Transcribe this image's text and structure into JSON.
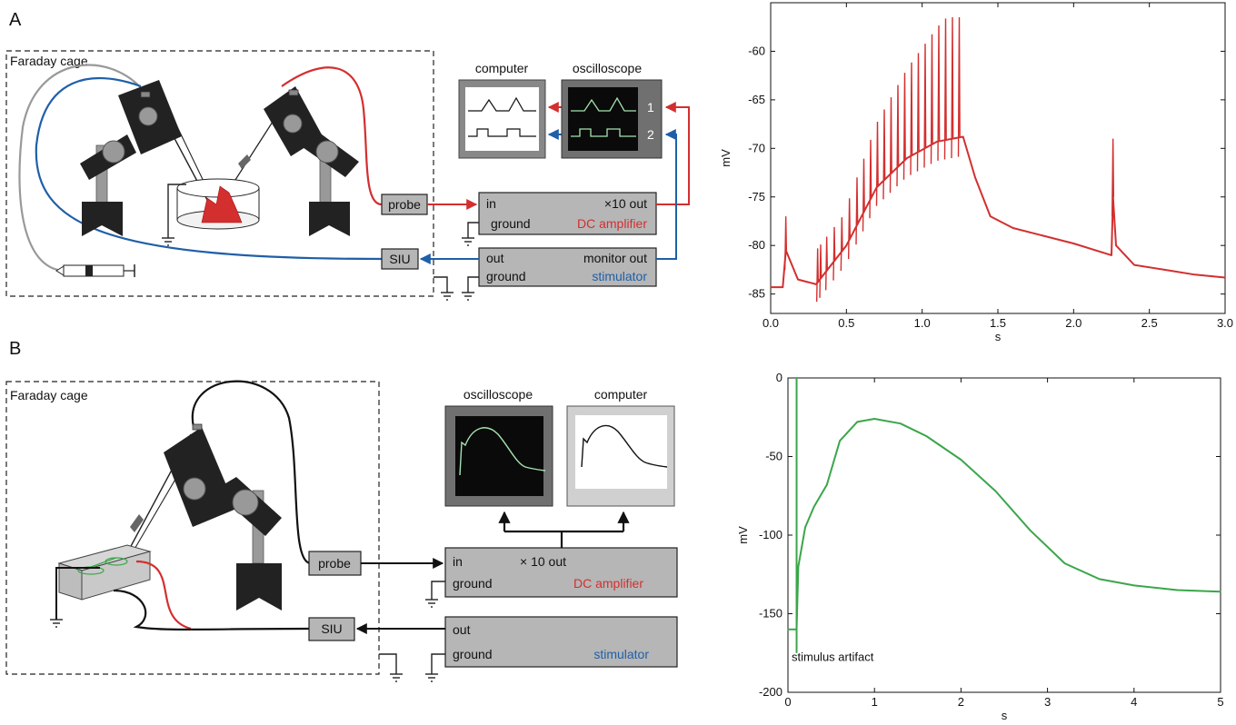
{
  "panels": {
    "a": {
      "label": "A",
      "faraday_label": "Faraday cage",
      "computer_label": "computer",
      "oscilloscope_label": "oscilloscope",
      "channel_1": "1",
      "channel_2": "2",
      "probe_label": "probe",
      "siu_label": "SIU",
      "amplifier": {
        "in": "in",
        "out": "×10 out",
        "ground": "ground",
        "name": "DC amplifier"
      },
      "stimulator": {
        "out": "out",
        "monitor": "monitor out",
        "ground": "ground",
        "name": "stimulator"
      }
    },
    "b": {
      "label": "B",
      "faraday_label": "Faraday  cage",
      "oscilloscope_label": "oscilloscope",
      "computer_label": "computer",
      "probe_label": "probe",
      "siu_label": "SIU",
      "amplifier": {
        "in": "in",
        "out": "× 10 out",
        "ground": "ground",
        "name": "DC amplifier"
      },
      "stimulator": {
        "out": "out",
        "ground": "ground",
        "name": "stimulator"
      }
    }
  },
  "colors": {
    "red": "#d32f2f",
    "blue": "#1f5fa8",
    "green": "#3aa64a",
    "screen_green": "#a6e3b0",
    "gray_box": "#b6b6b6"
  },
  "chart_data": [
    {
      "type": "line",
      "xlabel": "s",
      "ylabel": "mV",
      "xlim": [
        0,
        3
      ],
      "ylim": [
        -87,
        -55
      ],
      "x_ticks": [
        "0.0",
        "0.5",
        "1.0",
        "1.5",
        "2.0",
        "2.5",
        "3.0"
      ],
      "y_ticks": [
        "-60",
        "-65",
        "-70",
        "-75",
        "-80",
        "-85"
      ],
      "series": [
        {
          "color": "#d32f2f",
          "x": [
            0.0,
            0.08,
            0.1,
            0.18,
            0.3,
            0.5,
            0.7,
            0.9,
            1.1,
            1.27,
            1.35,
            1.45,
            1.6,
            1.8,
            2.0,
            2.25,
            2.26,
            2.28,
            2.4,
            2.6,
            2.8,
            3.0
          ],
          "y": [
            -84.3,
            -84.3,
            -80.5,
            -83.5,
            -84.0,
            -80.0,
            -74.0,
            -71.0,
            -69.3,
            -68.8,
            -73.0,
            -77.0,
            -78.2,
            -79.0,
            -79.8,
            -81.0,
            -75.0,
            -80.0,
            -82.0,
            -82.5,
            -83.0,
            -83.3
          ]
        }
      ]
    },
    {
      "type": "line",
      "xlabel": "s",
      "ylabel": "mV",
      "xlim": [
        0,
        5
      ],
      "ylim": [
        -200,
        0
      ],
      "x_ticks": [
        "0",
        "1",
        "2",
        "3",
        "4",
        "5"
      ],
      "y_ticks": [
        "0",
        "-50",
        "-100",
        "-150",
        "-200"
      ],
      "annotation": "stimulus artifact",
      "series": [
        {
          "color": "#3aa64a",
          "x": [
            0.0,
            0.1,
            0.12,
            0.2,
            0.3,
            0.45,
            0.6,
            0.8,
            1.0,
            1.3,
            1.6,
            2.0,
            2.4,
            2.8,
            3.2,
            3.6,
            4.0,
            4.5,
            5.0
          ],
          "y": [
            -160,
            -160,
            -120,
            -95,
            -82,
            -68,
            -40,
            -28,
            -26,
            -29,
            -37,
            -52,
            -72,
            -97,
            -118,
            -128,
            -132,
            -135,
            -136
          ]
        }
      ]
    }
  ]
}
